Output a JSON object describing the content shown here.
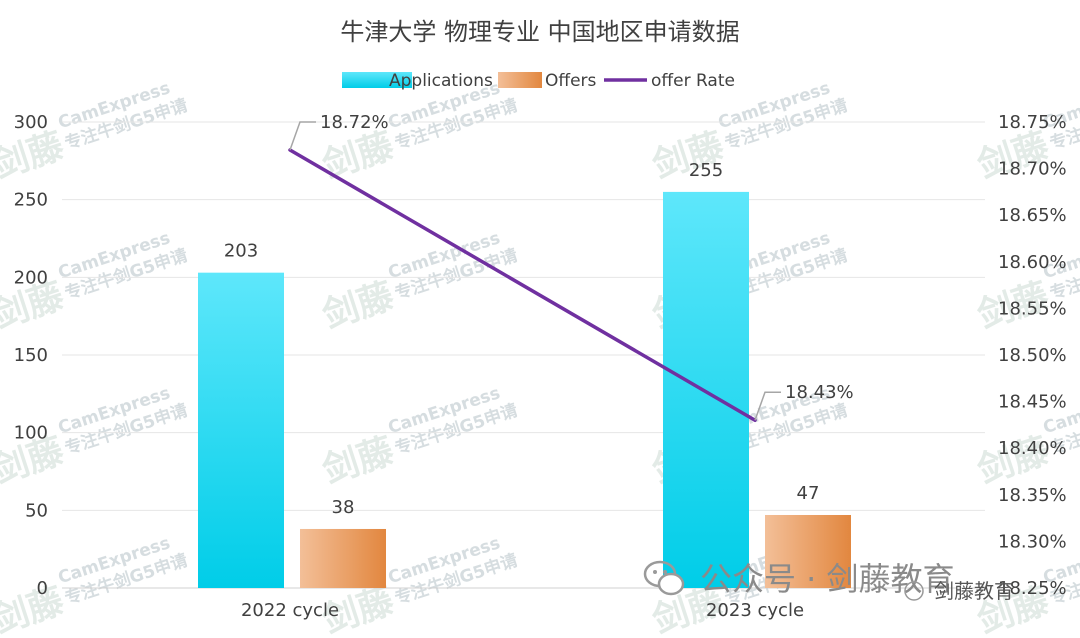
{
  "chart_data": {
    "type": "bar",
    "title": "牛津大学 物理专业 中国地区申请数据",
    "categories": [
      "2022 cycle",
      "2023 cycle"
    ],
    "series": [
      {
        "name": "Applications",
        "type": "bar",
        "axis": "left",
        "values": [
          203,
          255
        ],
        "color_top": "#5ee7fb",
        "color_bottom": "#00cde8"
      },
      {
        "name": "Offers",
        "type": "bar",
        "axis": "left",
        "values": [
          38,
          47
        ],
        "color_left": "#f3bf98",
        "color_right": "#e2873f"
      },
      {
        "name": "offer Rate",
        "type": "line",
        "axis": "right",
        "values": [
          18.72,
          18.43
        ],
        "labels": [
          "18.72%",
          "18.43%"
        ],
        "color": "#7030a0"
      }
    ],
    "y_left": {
      "min": 0,
      "max": 300,
      "step": 50,
      "ticks": [
        "0",
        "50",
        "100",
        "150",
        "200",
        "250",
        "300"
      ]
    },
    "y_right": {
      "min": 18.25,
      "max": 18.75,
      "step": 0.05,
      "ticks": [
        "18.25%",
        "18.30%",
        "18.35%",
        "18.40%",
        "18.45%",
        "18.50%",
        "18.55%",
        "18.60%",
        "18.65%",
        "18.70%",
        "18.75%"
      ]
    },
    "grid": true,
    "legend_position": "top-center"
  },
  "watermark": {
    "brand_cn": "剑藤",
    "brand_en": "CamExpress",
    "slogan": "专注牛剑G5申请"
  },
  "footer": {
    "account": "公众号 · 剑藤教育",
    "small": "剑藤教育"
  }
}
